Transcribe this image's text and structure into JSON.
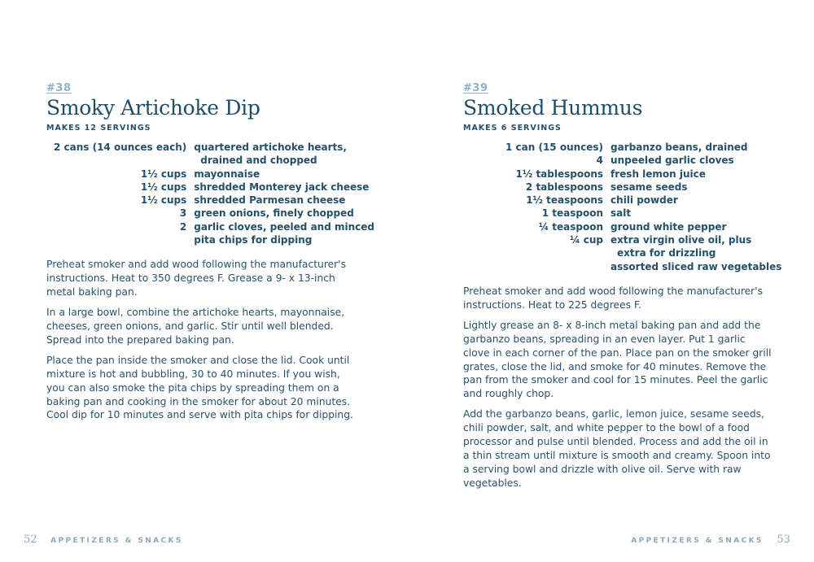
{
  "left": {
    "number": "#38",
    "title": "Smoky Artichoke Dip",
    "yield": "MAKES 12 SERVINGS",
    "ingredients": [
      {
        "qty": "2 cans (14 ounces each)",
        "item": "quartered artichoke hearts,",
        "cont": "drained and chopped"
      },
      {
        "qty": "1½ cups",
        "item": "mayonnaise"
      },
      {
        "qty": "1½ cups",
        "item": "shredded Monterey jack cheese"
      },
      {
        "qty": "1½ cups",
        "item": "shredded Parmesan cheese"
      },
      {
        "qty": "3",
        "item": "green onions, finely chopped"
      },
      {
        "qty": "2",
        "item": "garlic cloves, peeled and minced"
      },
      {
        "qty": "",
        "item": "pita chips for dipping"
      }
    ],
    "steps": [
      "Preheat smoker and add wood following the manufacturer's instructions. Heat to 350 degrees F. Grease a 9- x 13-inch metal baking pan.",
      "In a large bowl, combine the artichoke hearts, mayonnaise, cheeses, green onions, and garlic. Stir until well blended. Spread into the prepared baking pan.",
      "Place the pan inside the smoker and close the lid. Cook until mixture is hot and bubbling, 30 to 40 minutes. If you wish, you can also smoke the pita chips by spreading them on a baking pan and cooking in the smoker for about 20 minutes. Cool dip for 10 minutes and serve with pita chips for dipping."
    ],
    "page_number": "52",
    "section": "APPETIZERS & SNACKS"
  },
  "right": {
    "number": "#39",
    "title": "Smoked Hummus",
    "yield": "MAKES 6 SERVINGS",
    "ingredients": [
      {
        "qty": "1 can (15 ounces)",
        "item": "garbanzo beans, drained"
      },
      {
        "qty": "4",
        "item": "unpeeled garlic cloves"
      },
      {
        "qty": "1½ tablespoons",
        "item": "fresh lemon juice"
      },
      {
        "qty": "2 tablespoons",
        "item": "sesame seeds"
      },
      {
        "qty": "1½ teaspoons",
        "item": "chili powder"
      },
      {
        "qty": "1 teaspoon",
        "item": "salt"
      },
      {
        "qty": "¼ teaspoon",
        "item": "ground white pepper"
      },
      {
        "qty": "¼ cup",
        "item": "extra virgin olive oil, plus",
        "cont": "extra for drizzling"
      },
      {
        "qty": "",
        "item": "assorted sliced raw vegetables"
      }
    ],
    "steps": [
      "Preheat smoker and add wood following the manufacturer's instructions. Heat to 225 degrees F.",
      "Lightly grease an 8- x 8-inch metal baking pan and add the garbanzo beans, spreading in an even layer. Put 1 garlic clove in each corner of the pan. Place pan on the smoker grill grates, close the lid, and smoke for 40 minutes. Remove the pan from the smoker and cool for 15 minutes. Peel the garlic and roughly chop.",
      "Add the garbanzo beans, garlic, lemon juice, sesame seeds, chili powder, salt, and white pepper to the bowl of a food processor and pulse until blended. Process and add the oil in a thin stream until mixture is smooth and creamy. Spoon into a serving bowl and drizzle with olive oil. Serve with raw vegetables."
    ],
    "page_number": "53",
    "section": "APPETIZERS & SNACKS"
  }
}
